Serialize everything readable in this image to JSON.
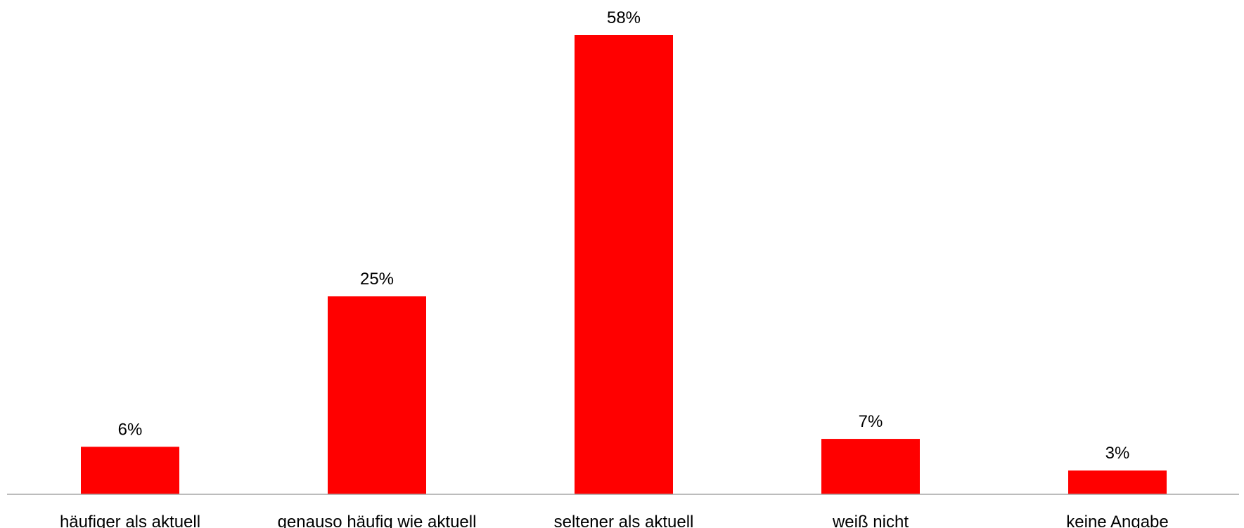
{
  "chart_data": {
    "type": "bar",
    "categories": [
      "häufiger als aktuell",
      "genauso häufig wie aktuell",
      "seltener als aktuell",
      "weiß nicht",
      "keine Angabe"
    ],
    "values": [
      6,
      25,
      58,
      7,
      3
    ],
    "data_labels": [
      "6%",
      "25%",
      "58%",
      "7%",
      "3%"
    ],
    "unit": "%",
    "ylim": [
      0,
      58
    ],
    "grid": false,
    "legend": "none",
    "bar_color": "#FF0000",
    "axis_color": "#A6A6A6"
  }
}
